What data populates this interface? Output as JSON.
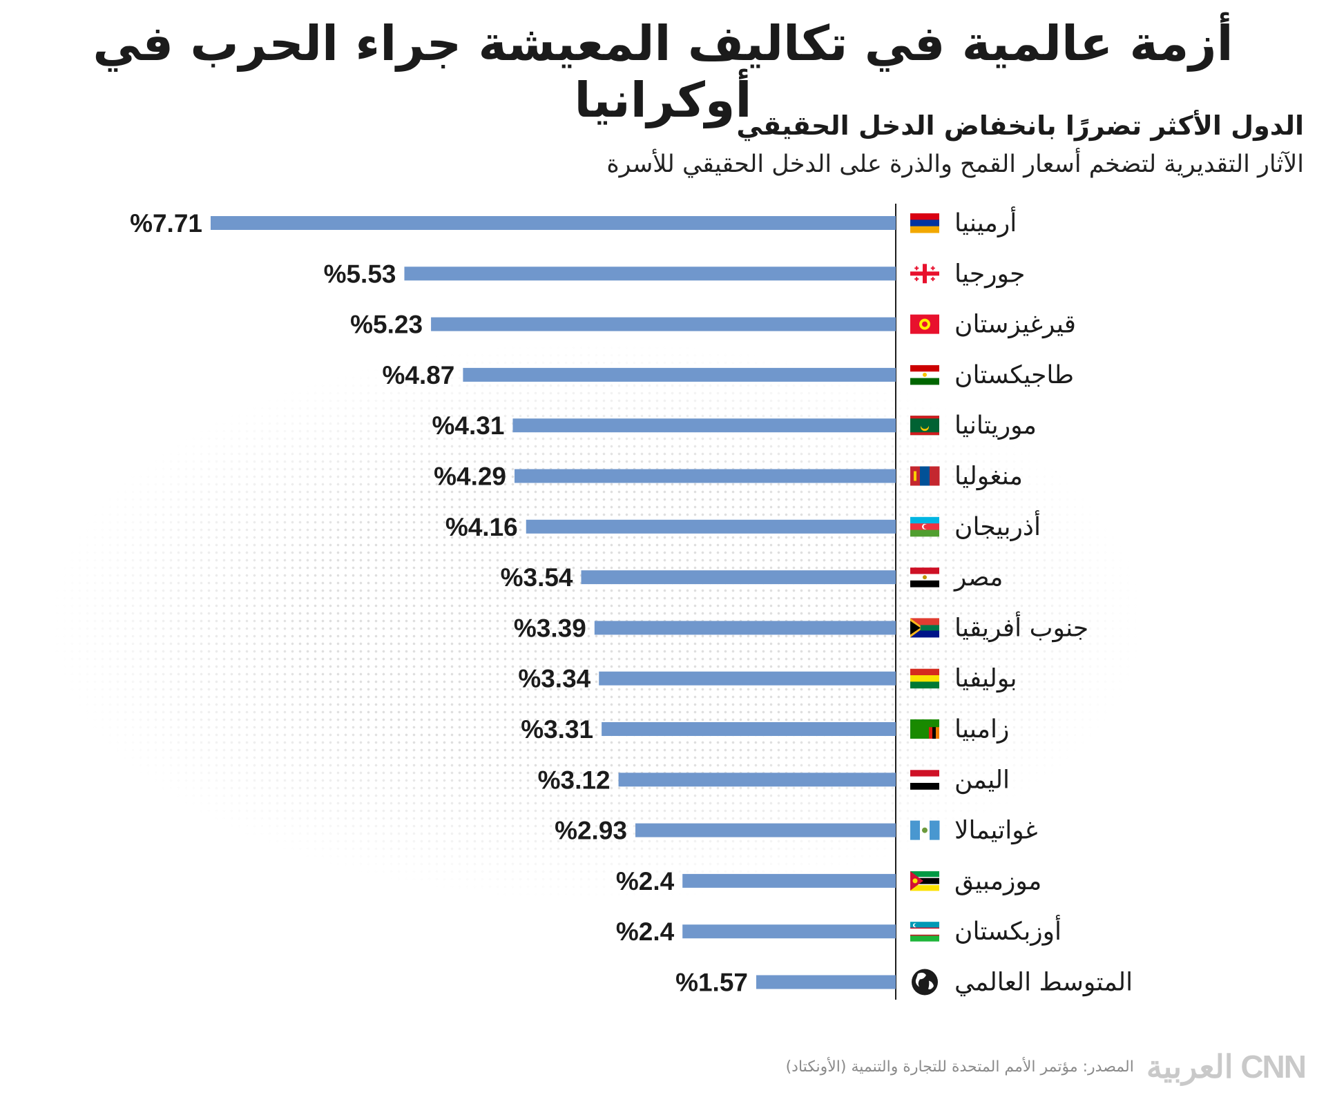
{
  "title": "أزمة عالمية في تكاليف المعيشة جراء الحرب في أوكرانيا",
  "subtitle": "الدول الأكثر تضررًا بانخفاض الدخل الحقيقي",
  "description": "الآثار التقديرية لتضخم أسعار القمح والذرة على الدخل الحقيقي للأسرة",
  "source": "المصدر: مؤتمر الأمم المتحدة للتجارة والتنمية (الأونكتاد)",
  "logo": "CNN العربية",
  "colors": {
    "bar": "#7097cc",
    "axis": "#1b1b1b"
  },
  "chart_data": {
    "type": "bar",
    "orientation": "horizontal",
    "direction": "right-to-left",
    "categories": [
      "أرمينيا",
      "جورجيا",
      "قيرغيزستان",
      "طاجيكستان",
      "موريتانيا",
      "منغوليا",
      "أذربيجان",
      "مصر",
      "جنوب أفريقيا",
      "بوليفيا",
      "زامبيا",
      "اليمن",
      "غواتيمالا",
      "موزمبيق",
      "أوزبكستان",
      "المتوسط العالمي"
    ],
    "values": [
      7.71,
      5.53,
      5.23,
      4.87,
      4.31,
      4.29,
      4.16,
      3.54,
      3.39,
      3.34,
      3.31,
      3.12,
      2.93,
      2.4,
      2.4,
      1.57
    ],
    "value_labels": [
      "%7.71",
      "%5.53",
      "%5.23",
      "%4.87",
      "%4.31",
      "%4.29",
      "%4.16",
      "%3.54",
      "%3.39",
      "%3.34",
      "%3.31",
      "%3.12",
      "%2.93",
      "%2.4",
      "%2.4",
      "%1.57"
    ],
    "flags": [
      "armenia",
      "georgia",
      "kyrgyzstan",
      "tajikistan",
      "mauritania",
      "mongolia",
      "azerbaijan",
      "egypt",
      "south-africa",
      "bolivia",
      "zambia",
      "yemen",
      "guatemala",
      "mozambique",
      "uzbekistan",
      "globe"
    ],
    "xlim": [
      0,
      7.71
    ]
  }
}
